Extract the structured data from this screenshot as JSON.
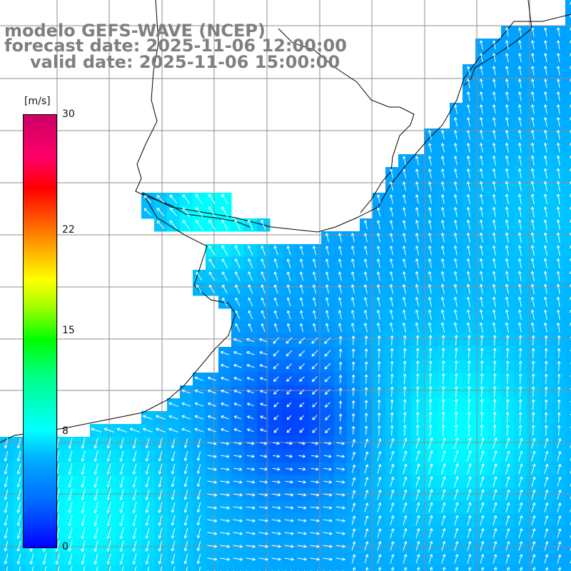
{
  "title": {
    "line1": "modelo GEFS-WAVE (NCEP)",
    "line2": "forecast date: 2025-11-06 12:00:00",
    "line3": "valid date: 2025-11-06 15:00:00"
  },
  "colorbar": {
    "unit": "[m/s]",
    "ticks": [
      {
        "label": "30",
        "value": 30
      },
      {
        "label": "22",
        "value": 22
      },
      {
        "label": "15",
        "value": 15
      },
      {
        "label": "8",
        "value": 8
      },
      {
        "label": "0",
        "value": 0
      }
    ],
    "min": 0,
    "max": 30
  },
  "colors": {
    "land": "#ffffff",
    "coast": "#000000",
    "grid": "#8c8c8c",
    "arrow": "#ffffff",
    "title": "#7f7f7f",
    "low_wind": "#0030ff",
    "mid_wind": "#0090ff",
    "high_wind": "#00ddff"
  },
  "map": {
    "type": "wind vector field over ocean",
    "grid": true
  }
}
